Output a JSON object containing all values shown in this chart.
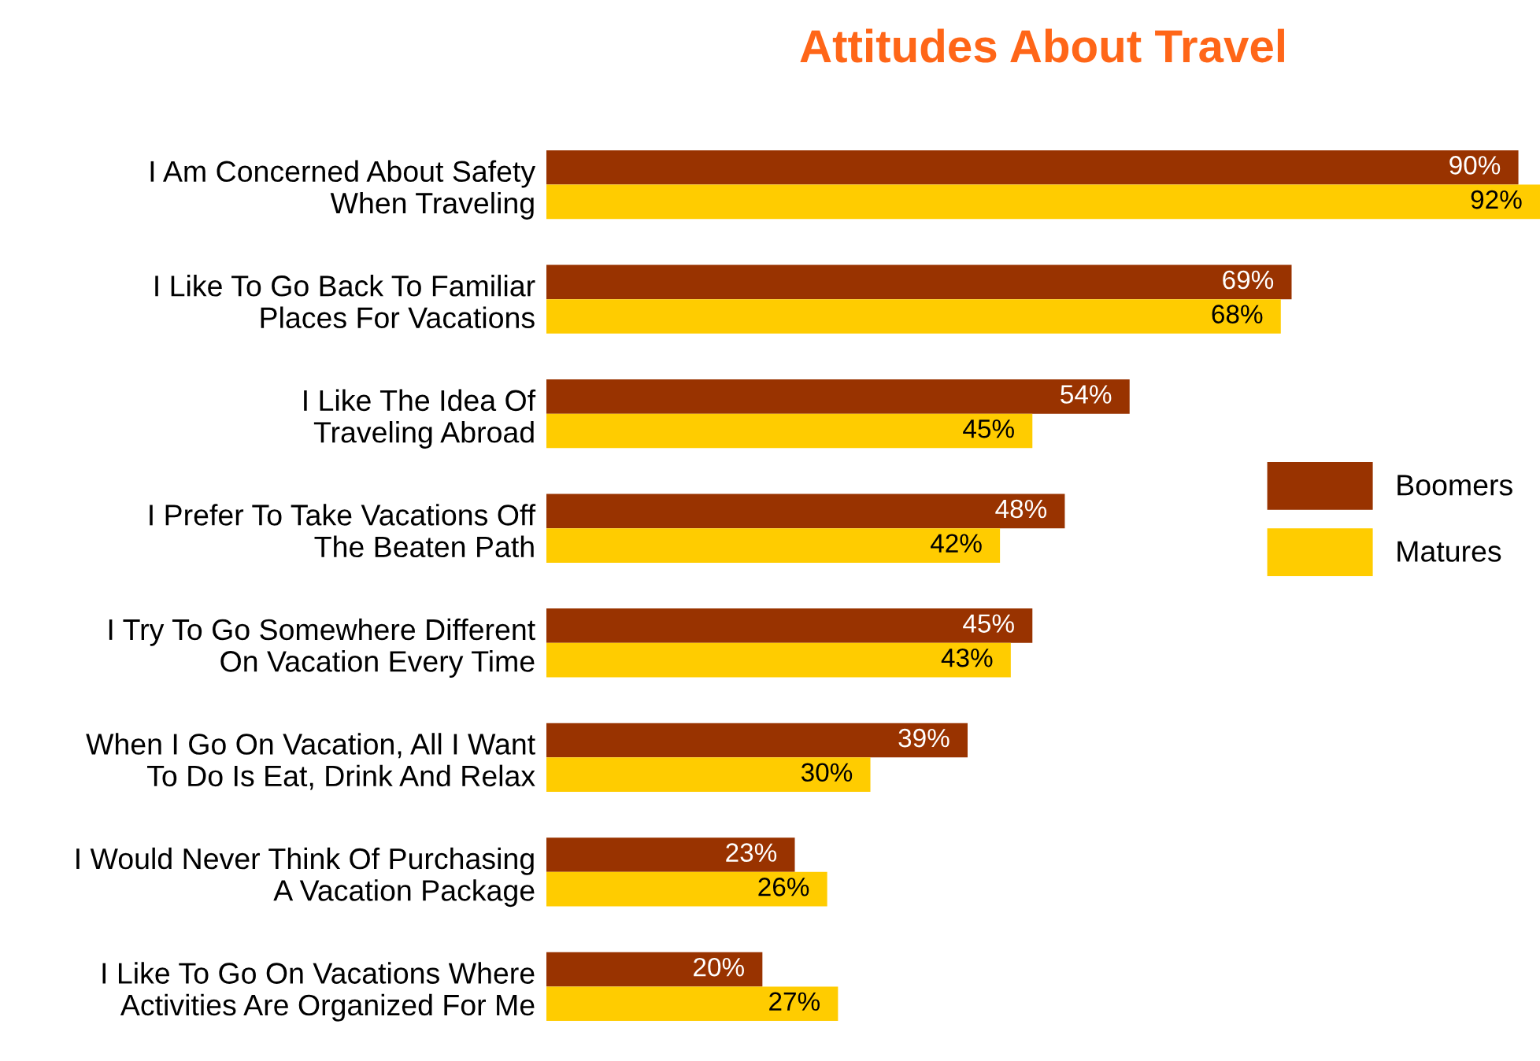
{
  "chart_data": {
    "type": "bar",
    "orientation": "horizontal",
    "title": "Attitudes About Travel",
    "categories": [
      "I Am Concerned About Safety\nWhen Traveling",
      "I Like To Go Back To Familiar\nPlaces For Vacations",
      "I Like The Idea Of\nTraveling Abroad",
      "I Prefer To Take Vacations Off\nThe Beaten Path",
      "I Try To Go Somewhere Different\nOn Vacation Every Time",
      "When I Go On Vacation, All I Want\nTo Do Is Eat, Drink And Relax",
      "I Would Never Think Of Purchasing\nA Vacation Package",
      "I Like To Go On Vacations Where\nActivities Are Organized For Me"
    ],
    "series": [
      {
        "name": "Boomers",
        "color": "#993300",
        "values": [
          90,
          69,
          54,
          48,
          45,
          39,
          23,
          20
        ],
        "value_labels": [
          "90%",
          "69%",
          "54%",
          "48%",
          "45%",
          "39%",
          "23%",
          "20%"
        ]
      },
      {
        "name": "Matures",
        "color": "#ffcc00",
        "values": [
          92,
          68,
          45,
          42,
          43,
          30,
          26,
          27
        ],
        "value_labels": [
          "92%",
          "68%",
          "45%",
          "42%",
          "43%",
          "30%",
          "26%",
          "27%"
        ]
      }
    ],
    "legend": "right",
    "grid": false
  }
}
